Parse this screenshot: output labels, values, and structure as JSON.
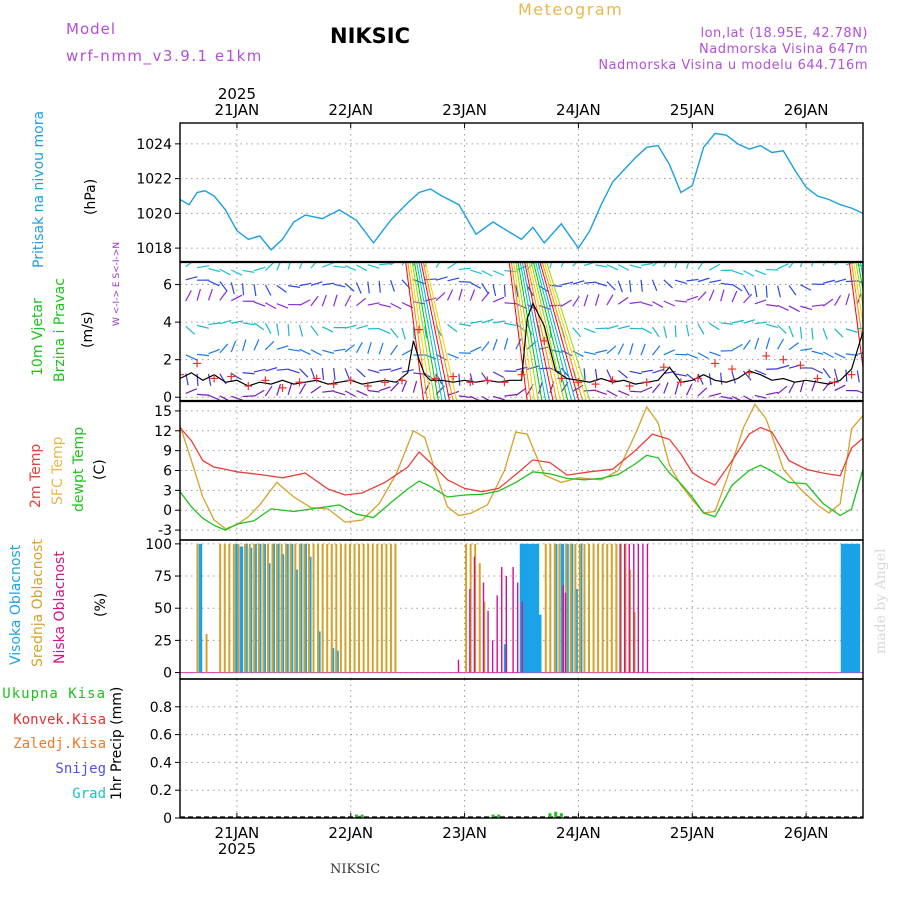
{
  "header": {
    "model_label": "Model",
    "model_name": "wrf-nmm_v3.9.1  e1km",
    "station_title": "NIKSIC",
    "meteogram_label": "Meteogram",
    "lonlat": "lon,lat (18.95E, 42.78N)",
    "elevation": "Nadmorska Visina 647m",
    "model_elevation": "Nadmorska Visina u modelu 644.716m",
    "credit": "made by Angel",
    "footer_station": "NIKSIC"
  },
  "time_axis": {
    "year": "2025",
    "days": [
      "21JAN",
      "22JAN",
      "23JAN",
      "24JAN",
      "25JAN",
      "26JAN"
    ],
    "days_x": [
      1,
      2,
      3,
      4,
      5,
      6
    ],
    "range": [
      0.5,
      6.5
    ]
  },
  "colors": {
    "pressure": "#1a9fe0",
    "wind_speed": "#000000",
    "gust": "#e8302e",
    "t2m": "#e8403c",
    "sfc_temp": "#d4a22a",
    "dewpoint": "#1ec21e",
    "high_cloud": "#1aa3e8",
    "mid_cloud": "#d4a22a",
    "low_cloud": "#d4128a",
    "precip_total": "#1ec21e",
    "precip_conv": "#e8302e",
    "precip_freezing": "#f07820",
    "snow": "#5050e0",
    "graupel": "#20c0c0",
    "legend_model": "#b44fd8",
    "wind_dirs": "#9b30c8"
  },
  "chart_data": [
    {
      "type": "line",
      "name": "pressure",
      "ylabel_main": "Pritisak na nivou mora",
      "ylabel_unit": "(hPa)",
      "ylim": [
        1017.2,
        1025.2
      ],
      "yticks": [
        1018,
        1020,
        1022,
        1024
      ],
      "series": [
        {
          "x": [
            0.5,
            0.58,
            0.65,
            0.72,
            0.8,
            0.9,
            1.0,
            1.1,
            1.2,
            1.3,
            1.4,
            1.5,
            1.6,
            1.75,
            1.9,
            2.05,
            2.2,
            2.35,
            2.5,
            2.6,
            2.7,
            2.8,
            2.95,
            3.1,
            3.25,
            3.4,
            3.5,
            3.6,
            3.7,
            3.85,
            4.0,
            4.1,
            4.2,
            4.3,
            4.4,
            4.5,
            4.6,
            4.7,
            4.8,
            4.9,
            5.0,
            5.1,
            5.2,
            5.3,
            5.4,
            5.5,
            5.6,
            5.7,
            5.8,
            5.9,
            6.0,
            6.1,
            6.2,
            6.3,
            6.4,
            6.5
          ],
          "y": [
            1020.8,
            1020.5,
            1021.2,
            1021.3,
            1021.0,
            1020.2,
            1019.0,
            1018.5,
            1018.7,
            1017.9,
            1018.5,
            1019.5,
            1019.9,
            1019.7,
            1020.2,
            1019.6,
            1018.3,
            1019.6,
            1020.6,
            1021.2,
            1021.4,
            1021.0,
            1020.5,
            1018.8,
            1019.5,
            1018.9,
            1018.5,
            1019.2,
            1018.3,
            1019.4,
            1018.0,
            1019.0,
            1020.5,
            1021.8,
            1022.5,
            1023.2,
            1023.8,
            1023.9,
            1022.8,
            1021.2,
            1021.6,
            1023.8,
            1024.6,
            1024.5,
            1024.0,
            1023.7,
            1023.9,
            1023.5,
            1023.6,
            1022.5,
            1021.5,
            1021.0,
            1020.8,
            1020.5,
            1020.3,
            1020.0
          ]
        }
      ]
    },
    {
      "type": "line",
      "name": "wind",
      "ylabel_main": "10m Vjetar",
      "ylabel_sub": "Brzina i Pravac",
      "ylabel_unit": "(m/s)",
      "direction_legend": "W  <-I->  E   S<-I->N",
      "ylim": [
        -0.2,
        7.2
      ],
      "yticks": [
        0,
        2,
        4,
        6
      ],
      "series": [
        {
          "name": "speed",
          "x": [
            0.5,
            0.6,
            0.7,
            0.8,
            0.9,
            1.0,
            1.1,
            1.2,
            1.3,
            1.4,
            1.5,
            1.6,
            1.7,
            1.8,
            1.9,
            2.0,
            2.1,
            2.2,
            2.3,
            2.4,
            2.5,
            2.55,
            2.6,
            2.65,
            2.7,
            2.8,
            2.9,
            3.0,
            3.1,
            3.2,
            3.3,
            3.4,
            3.5,
            3.55,
            3.6,
            3.7,
            3.8,
            3.9,
            4.0,
            4.1,
            4.2,
            4.3,
            4.4,
            4.5,
            4.6,
            4.7,
            4.8,
            4.9,
            5.0,
            5.1,
            5.2,
            5.3,
            5.4,
            5.5,
            5.6,
            5.7,
            5.8,
            5.9,
            6.0,
            6.1,
            6.2,
            6.3,
            6.4,
            6.5
          ],
          "y": [
            1.0,
            1.3,
            0.9,
            1.2,
            0.8,
            0.9,
            0.6,
            0.8,
            0.7,
            0.9,
            0.7,
            0.8,
            0.9,
            0.7,
            0.8,
            0.9,
            0.7,
            0.8,
            0.9,
            0.8,
            1.3,
            3.0,
            2.0,
            1.2,
            0.9,
            0.9,
            0.8,
            0.9,
            0.8,
            0.9,
            0.8,
            0.9,
            0.9,
            4.2,
            5.0,
            3.8,
            1.4,
            1.0,
            0.9,
            0.8,
            1.0,
            0.8,
            0.9,
            0.7,
            0.8,
            0.9,
            1.6,
            0.8,
            0.9,
            1.2,
            0.9,
            0.8,
            1.0,
            1.4,
            1.2,
            0.9,
            1.0,
            0.8,
            0.9,
            0.8,
            0.7,
            0.9,
            1.5,
            3.5
          ]
        },
        {
          "name": "gust",
          "x": [
            0.5,
            0.65,
            0.8,
            0.95,
            1.1,
            1.25,
            1.4,
            1.55,
            1.7,
            1.85,
            2.0,
            2.15,
            2.3,
            2.45,
            2.6,
            2.75,
            2.9,
            3.05,
            3.2,
            3.35,
            3.5,
            3.7,
            3.85,
            4.0,
            4.15,
            4.3,
            4.45,
            4.6,
            4.75,
            4.9,
            5.05,
            5.2,
            5.35,
            5.5,
            5.65,
            5.8,
            5.95,
            6.1,
            6.25,
            6.4
          ],
          "y": [
            1.2,
            1.8,
            1.0,
            1.1,
            0.6,
            0.9,
            0.5,
            0.8,
            1.0,
            0.7,
            0.9,
            0.6,
            0.8,
            0.9,
            3.6,
            1.0,
            1.1,
            0.8,
            0.9,
            0.8,
            1.2,
            3.0,
            1.0,
            0.8,
            0.7,
            0.9,
            0.6,
            0.8,
            1.6,
            0.8,
            1.0,
            1.8,
            1.5,
            1.3,
            2.2,
            2.0,
            1.7,
            1.0,
            0.8,
            1.2
          ]
        }
      ],
      "arrow_rows": [
        0.2,
        1.4,
        2.4,
        3.8,
        5.0,
        6.1,
        6.9
      ]
    },
    {
      "type": "line",
      "name": "temperature",
      "ylabel_a": "2m Temp",
      "ylabel_b": "SFC Temp",
      "ylabel_c": "dewpt Temp",
      "ylabel_unit": "(C)",
      "ylim": [
        -4.5,
        16.5
      ],
      "yticks": [
        -3,
        0,
        3,
        6,
        9,
        12,
        15
      ],
      "series": [
        {
          "name": "2m Temp",
          "x": [
            0.5,
            0.6,
            0.7,
            0.8,
            0.9,
            1.0,
            1.2,
            1.4,
            1.6,
            1.8,
            1.95,
            2.1,
            2.3,
            2.5,
            2.6,
            2.7,
            2.85,
            3.0,
            3.15,
            3.3,
            3.45,
            3.6,
            3.75,
            3.9,
            4.1,
            4.3,
            4.5,
            4.65,
            4.8,
            4.9,
            5.0,
            5.1,
            5.2,
            5.35,
            5.5,
            5.6,
            5.7,
            5.85,
            6.0,
            6.15,
            6.3,
            6.4,
            6.5
          ],
          "y": [
            12.5,
            10.5,
            7.5,
            6.5,
            6.2,
            5.8,
            5.4,
            4.9,
            5.6,
            3.2,
            2.3,
            2.6,
            4.2,
            6.5,
            8.8,
            7.2,
            4.6,
            3.3,
            2.8,
            3.3,
            5.4,
            7.6,
            7.2,
            5.3,
            5.8,
            6.2,
            9.0,
            11.5,
            10.7,
            8.5,
            5.7,
            4.6,
            3.8,
            7.5,
            11.5,
            12.5,
            11.8,
            7.5,
            6.2,
            5.6,
            5.2,
            9.4,
            10.9
          ]
        },
        {
          "name": "SFC Temp",
          "x": [
            0.5,
            0.6,
            0.7,
            0.8,
            0.9,
            1.0,
            1.1,
            1.2,
            1.35,
            1.5,
            1.65,
            1.8,
            1.95,
            2.1,
            2.25,
            2.4,
            2.55,
            2.65,
            2.75,
            2.85,
            2.95,
            3.05,
            3.2,
            3.35,
            3.45,
            3.55,
            3.7,
            3.85,
            4.0,
            4.2,
            4.35,
            4.5,
            4.6,
            4.7,
            4.8,
            4.9,
            5.0,
            5.1,
            5.2,
            5.3,
            5.45,
            5.55,
            5.65,
            5.8,
            5.95,
            6.1,
            6.2,
            6.3,
            6.4,
            6.5
          ],
          "y": [
            12.8,
            7.5,
            2.0,
            -1.5,
            -2.8,
            -2.2,
            -1.0,
            0.8,
            4.2,
            2.0,
            0.4,
            0.2,
            -1.8,
            -1.5,
            1.0,
            5.5,
            12.0,
            11.0,
            5.5,
            0.5,
            -0.8,
            -0.5,
            0.8,
            6.0,
            11.8,
            11.5,
            5.3,
            4.2,
            4.9,
            4.6,
            6.0,
            11.5,
            15.6,
            13.2,
            6.8,
            3.8,
            1.6,
            -0.4,
            -0.2,
            4.5,
            12.5,
            16.0,
            13.8,
            6.2,
            3.2,
            0.8,
            -0.4,
            1.0,
            12.3,
            14.3
          ]
        },
        {
          "name": "dewpt Temp",
          "x": [
            0.5,
            0.6,
            0.7,
            0.8,
            0.9,
            1.0,
            1.15,
            1.3,
            1.5,
            1.7,
            1.9,
            2.05,
            2.2,
            2.35,
            2.5,
            2.6,
            2.7,
            2.85,
            3.0,
            3.15,
            3.3,
            3.45,
            3.6,
            3.75,
            3.9,
            4.05,
            4.2,
            4.35,
            4.5,
            4.6,
            4.7,
            4.8,
            4.9,
            5.0,
            5.1,
            5.2,
            5.35,
            5.5,
            5.6,
            5.7,
            5.85,
            6.0,
            6.15,
            6.3,
            6.4,
            6.5
          ],
          "y": [
            2.8,
            0.5,
            -1.2,
            -2.3,
            -3.0,
            -2.1,
            -1.6,
            0.2,
            -0.2,
            0.3,
            0.8,
            -0.6,
            -1.1,
            1.1,
            3.2,
            4.4,
            3.6,
            2.0,
            2.3,
            2.4,
            2.9,
            4.2,
            5.8,
            5.5,
            4.8,
            4.6,
            4.8,
            5.4,
            7.0,
            8.3,
            7.9,
            5.6,
            4.0,
            2.0,
            -0.4,
            -1.0,
            3.8,
            6.0,
            6.8,
            5.9,
            4.2,
            4.0,
            1.0,
            -0.8,
            0.2,
            6.2
          ]
        }
      ]
    },
    {
      "type": "bar",
      "name": "clouds",
      "ylabel_a": "Visoka Oblacnost",
      "ylabel_b": "Srednja Oblacnost",
      "ylabel_c": "Niska Oblacnost",
      "ylabel_unit": "(%)",
      "ylim": [
        -5,
        103
      ],
      "yticks": [
        0,
        25,
        50,
        75,
        100
      ],
      "series": [
        {
          "name": "Visoka Oblacnost",
          "x": [
            0.68,
            1.0,
            1.04,
            1.08,
            1.12,
            1.16,
            1.2,
            1.24,
            1.28,
            1.32,
            1.36,
            1.4,
            1.44,
            1.48,
            1.52,
            1.56,
            1.6,
            1.64,
            1.72,
            1.84,
            1.88,
            3.36,
            3.5,
            3.52,
            3.54,
            3.56,
            3.58,
            3.6,
            3.62,
            3.64,
            3.66,
            3.8,
            3.86,
            3.9,
            3.94,
            3.98,
            4.02,
            6.32,
            6.34,
            6.36,
            6.38,
            6.4,
            6.42,
            6.44,
            6.46
          ],
          "y": [
            100,
            100,
            98,
            100,
            97,
            100,
            100,
            100,
            85,
            100,
            100,
            92,
            100,
            100,
            80,
            100,
            100,
            90,
            32,
            19,
            17,
            22,
            100,
            100,
            100,
            100,
            100,
            100,
            100,
            100,
            45,
            100,
            100,
            100,
            100,
            65,
            100,
            100,
            100,
            100,
            100,
            100,
            100,
            100,
            100
          ]
        },
        {
          "name": "Srednja Oblacnost",
          "x": [
            0.64,
            0.72,
            0.84,
            0.88,
            0.92,
            0.96,
            1.0,
            1.06,
            1.1,
            1.14,
            1.18,
            1.22,
            1.26,
            1.3,
            1.34,
            1.38,
            1.42,
            1.46,
            1.5,
            1.54,
            1.58,
            1.62,
            1.66,
            1.7,
            1.74,
            1.78,
            1.82,
            1.86,
            1.9,
            1.94,
            1.98,
            2.02,
            2.06,
            2.1,
            2.14,
            2.18,
            2.22,
            2.26,
            2.3,
            2.34,
            2.38,
            3.0,
            3.04,
            3.08,
            3.12,
            3.16,
            3.7,
            3.74,
            3.78,
            3.82,
            3.88,
            3.92,
            3.96,
            4.0,
            4.04,
            4.08,
            4.12,
            4.16,
            4.2,
            4.24,
            4.28,
            4.32,
            4.36,
            4.4,
            4.44,
            4.48
          ],
          "y": [
            100,
            30,
            100,
            100,
            100,
            100,
            100,
            100,
            100,
            100,
            100,
            100,
            100,
            100,
            100,
            100,
            100,
            100,
            100,
            100,
            100,
            100,
            100,
            100,
            100,
            100,
            100,
            100,
            100,
            100,
            100,
            100,
            100,
            100,
            100,
            100,
            100,
            100,
            100,
            100,
            100,
            100,
            100,
            100,
            85,
            55,
            100,
            100,
            100,
            100,
            100,
            100,
            100,
            100,
            100,
            100,
            100,
            100,
            100,
            100,
            100,
            100,
            100,
            100,
            80,
            47
          ]
        },
        {
          "name": "Niska Oblacnost",
          "x": [
            2.92,
            3.02,
            3.06,
            3.14,
            3.18,
            3.22,
            3.26,
            3.3,
            3.34,
            3.4,
            3.44,
            3.48,
            3.84,
            3.86,
            4.34,
            4.38,
            4.42,
            4.46,
            4.5,
            4.54,
            4.58
          ],
          "y": [
            10,
            65,
            90,
            70,
            48,
            25,
            60,
            82,
            75,
            82,
            70,
            55,
            68,
            62,
            100,
            100,
            100,
            100,
            100,
            100,
            100
          ]
        }
      ]
    },
    {
      "type": "bar",
      "name": "precip",
      "ylabel_unit": "1hr Precip (mm)",
      "legend": [
        "Ukupna Kisa",
        "Konvek.Kisa",
        "Zaledj.Kisa",
        "Snijeg",
        "Grad"
      ],
      "ylim": [
        0,
        1.0
      ],
      "yticks": [
        0,
        0.2,
        0.4,
        0.6,
        0.8
      ],
      "series": [
        {
          "name": "Ukupna Kisa",
          "x": [
            2.05,
            2.1,
            3.25,
            3.3,
            3.75,
            3.8,
            3.85
          ],
          "y": [
            0.01,
            0.01,
            0.01,
            0.01,
            0.02,
            0.03,
            0.02
          ]
        }
      ]
    }
  ]
}
